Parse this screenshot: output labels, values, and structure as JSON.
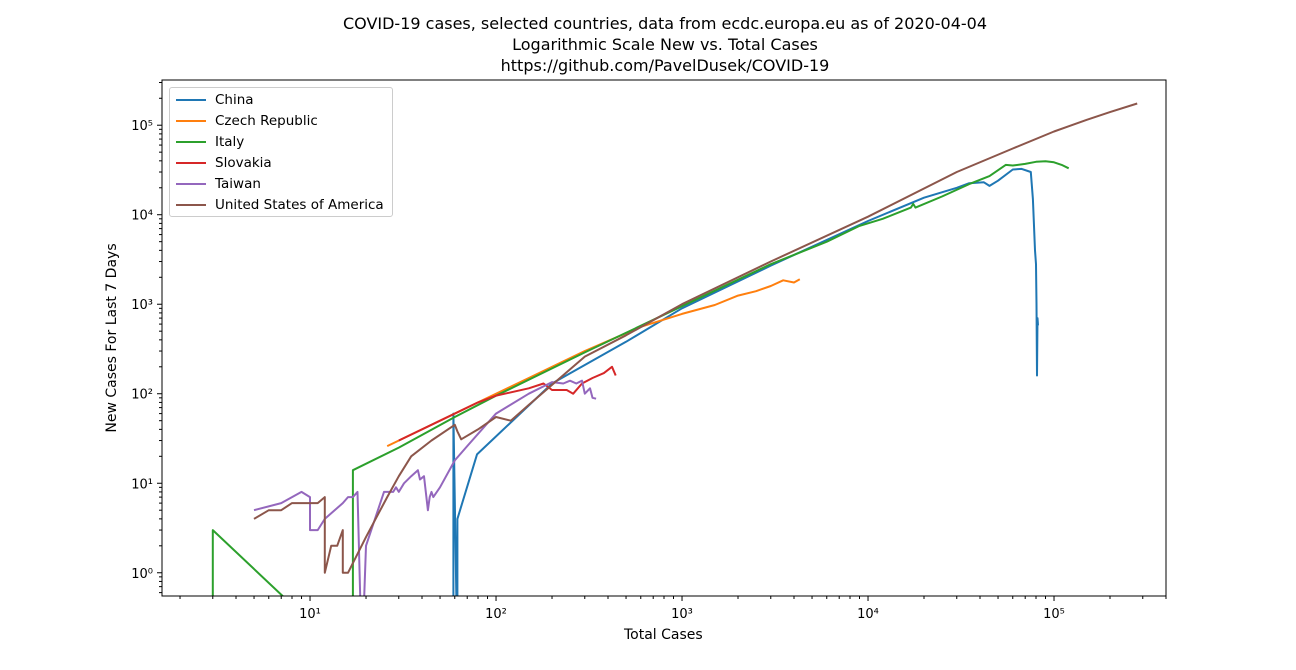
{
  "chart_data": {
    "type": "line",
    "title": "COVID-19 cases, selected countries, data from ecdc.europa.eu as of 2020-04-04",
    "subtitle": "Logarithmic Scale New vs. Total Cases",
    "subtitle2": "https://github.com/PavelDusek/COVID-19",
    "xlabel": "Total Cases",
    "ylabel": "New Cases For Last 7 Days",
    "xscale": "log",
    "yscale": "log",
    "xlim": [
      1.6,
      400000
    ],
    "ylim": [
      0.55,
      320000
    ],
    "grid": false,
    "legend_position": "top-left",
    "x_tick_labels": [
      {
        "value": 10,
        "label": "10¹"
      },
      {
        "value": 100,
        "label": "10²"
      },
      {
        "value": 1000,
        "label": "10³"
      },
      {
        "value": 10000,
        "label": "10⁴"
      },
      {
        "value": 100000,
        "label": "10⁵"
      }
    ],
    "y_tick_labels": [
      {
        "value": 1,
        "label": "10⁰"
      },
      {
        "value": 10,
        "label": "10¹"
      },
      {
        "value": 100,
        "label": "10²"
      },
      {
        "value": 1000,
        "label": "10³"
      },
      {
        "value": 10000,
        "label": "10⁴"
      },
      {
        "value": 100000,
        "label": "10⁵"
      }
    ],
    "series": [
      {
        "name": "China",
        "color": "#1f77b4",
        "points": [
          [
            59,
            0.1
          ],
          [
            59,
            60
          ],
          [
            62,
            0.1
          ],
          [
            62,
            4
          ],
          [
            79,
            21
          ],
          [
            200,
            130
          ],
          [
            500,
            380
          ],
          [
            1000,
            900
          ],
          [
            3000,
            2700
          ],
          [
            10000,
            8500
          ],
          [
            20000,
            15500
          ],
          [
            30000,
            20000
          ],
          [
            35000,
            22500
          ],
          [
            42000,
            23000
          ],
          [
            45000,
            21000
          ],
          [
            50000,
            24000
          ],
          [
            60000,
            32000
          ],
          [
            67000,
            32500
          ],
          [
            75000,
            30000
          ],
          [
            77000,
            15000
          ],
          [
            78000,
            8000
          ],
          [
            79000,
            4000
          ],
          [
            80000,
            2800
          ],
          [
            80500,
            1000
          ],
          [
            81000,
            160
          ],
          [
            81500,
            700
          ],
          [
            82000,
            580
          ]
        ]
      },
      {
        "name": "Czech Republic",
        "color": "#ff7f0e",
        "points": [
          [
            26,
            26
          ],
          [
            40,
            40
          ],
          [
            80,
            80
          ],
          [
            150,
            150
          ],
          [
            300,
            300
          ],
          [
            600,
            560
          ],
          [
            1000,
            780
          ],
          [
            1500,
            980
          ],
          [
            2000,
            1250
          ],
          [
            2500,
            1400
          ],
          [
            3000,
            1600
          ],
          [
            3500,
            1850
          ],
          [
            4000,
            1750
          ],
          [
            4300,
            1900
          ]
        ]
      },
      {
        "name": "Italy",
        "color": "#2ca02c",
        "points": [
          [
            3,
            0.1
          ],
          [
            3,
            3
          ],
          [
            17,
            0.1
          ],
          [
            17,
            14
          ],
          [
            30,
            25
          ],
          [
            60,
            55
          ],
          [
            100,
            95
          ],
          [
            300,
            290
          ],
          [
            1000,
            950
          ],
          [
            3000,
            2800
          ],
          [
            6000,
            5000
          ],
          [
            9000,
            7500
          ],
          [
            12000,
            9000
          ],
          [
            17000,
            12000
          ],
          [
            17500,
            13200
          ],
          [
            18000,
            12000
          ],
          [
            25000,
            16000
          ],
          [
            35000,
            22000
          ],
          [
            45000,
            27000
          ],
          [
            55000,
            36000
          ],
          [
            60000,
            35500
          ],
          [
            70000,
            37000
          ],
          [
            80000,
            39000
          ],
          [
            90000,
            39500
          ],
          [
            100000,
            38500
          ],
          [
            110000,
            36000
          ],
          [
            120000,
            33000
          ]
        ]
      },
      {
        "name": "Slovakia",
        "color": "#d62728",
        "points": [
          [
            30,
            30
          ],
          [
            50,
            50
          ],
          [
            80,
            80
          ],
          [
            100,
            95
          ],
          [
            150,
            115
          ],
          [
            180,
            130
          ],
          [
            200,
            110
          ],
          [
            240,
            110
          ],
          [
            260,
            100
          ],
          [
            290,
            130
          ],
          [
            330,
            150
          ],
          [
            380,
            170
          ],
          [
            420,
            200
          ],
          [
            440,
            160
          ]
        ]
      },
      {
        "name": "Taiwan",
        "color": "#9467bd",
        "points": [
          [
            5,
            5
          ],
          [
            7,
            6
          ],
          [
            9,
            8
          ],
          [
            10,
            7
          ],
          [
            10,
            3
          ],
          [
            11,
            3
          ],
          [
            12,
            4
          ],
          [
            15,
            6
          ],
          [
            16,
            7
          ],
          [
            17,
            7
          ],
          [
            18,
            8
          ],
          [
            19,
            0.1
          ],
          [
            20,
            2
          ],
          [
            25,
            8
          ],
          [
            28,
            8
          ],
          [
            29,
            9
          ],
          [
            30,
            8
          ],
          [
            32,
            10
          ],
          [
            35,
            12
          ],
          [
            38,
            14
          ],
          [
            39,
            11
          ],
          [
            41,
            12
          ],
          [
            43,
            5
          ],
          [
            44,
            7
          ],
          [
            45,
            8
          ],
          [
            46,
            7
          ],
          [
            50,
            9
          ],
          [
            60,
            18
          ],
          [
            70,
            26
          ],
          [
            100,
            60
          ],
          [
            150,
            100
          ],
          [
            200,
            135
          ],
          [
            230,
            130
          ],
          [
            250,
            140
          ],
          [
            270,
            130
          ],
          [
            290,
            140
          ],
          [
            300,
            100
          ],
          [
            320,
            115
          ],
          [
            330,
            90
          ],
          [
            345,
            88
          ]
        ]
      },
      {
        "name": "United States of America",
        "color": "#8c564b",
        "points": [
          [
            5,
            4
          ],
          [
            6,
            5
          ],
          [
            7,
            5
          ],
          [
            8,
            6
          ],
          [
            9,
            6
          ],
          [
            10,
            6
          ],
          [
            11,
            6
          ],
          [
            12,
            7
          ],
          [
            12,
            1
          ],
          [
            13,
            2
          ],
          [
            14,
            2
          ],
          [
            15,
            3
          ],
          [
            15,
            1
          ],
          [
            16,
            1
          ],
          [
            20,
            2.5
          ],
          [
            26,
            7
          ],
          [
            30,
            12
          ],
          [
            35,
            20
          ],
          [
            45,
            30
          ],
          [
            60,
            45
          ],
          [
            62,
            38
          ],
          [
            65,
            31
          ],
          [
            80,
            40
          ],
          [
            100,
            55
          ],
          [
            120,
            50
          ],
          [
            150,
            75
          ],
          [
            300,
            260
          ],
          [
            500,
            450
          ],
          [
            1000,
            1000
          ],
          [
            3000,
            3000
          ],
          [
            10000,
            9500
          ],
          [
            30000,
            30000
          ],
          [
            60000,
            55000
          ],
          [
            100000,
            85000
          ],
          [
            150000,
            115000
          ],
          [
            200000,
            140000
          ],
          [
            280000,
            175000
          ]
        ]
      }
    ]
  }
}
